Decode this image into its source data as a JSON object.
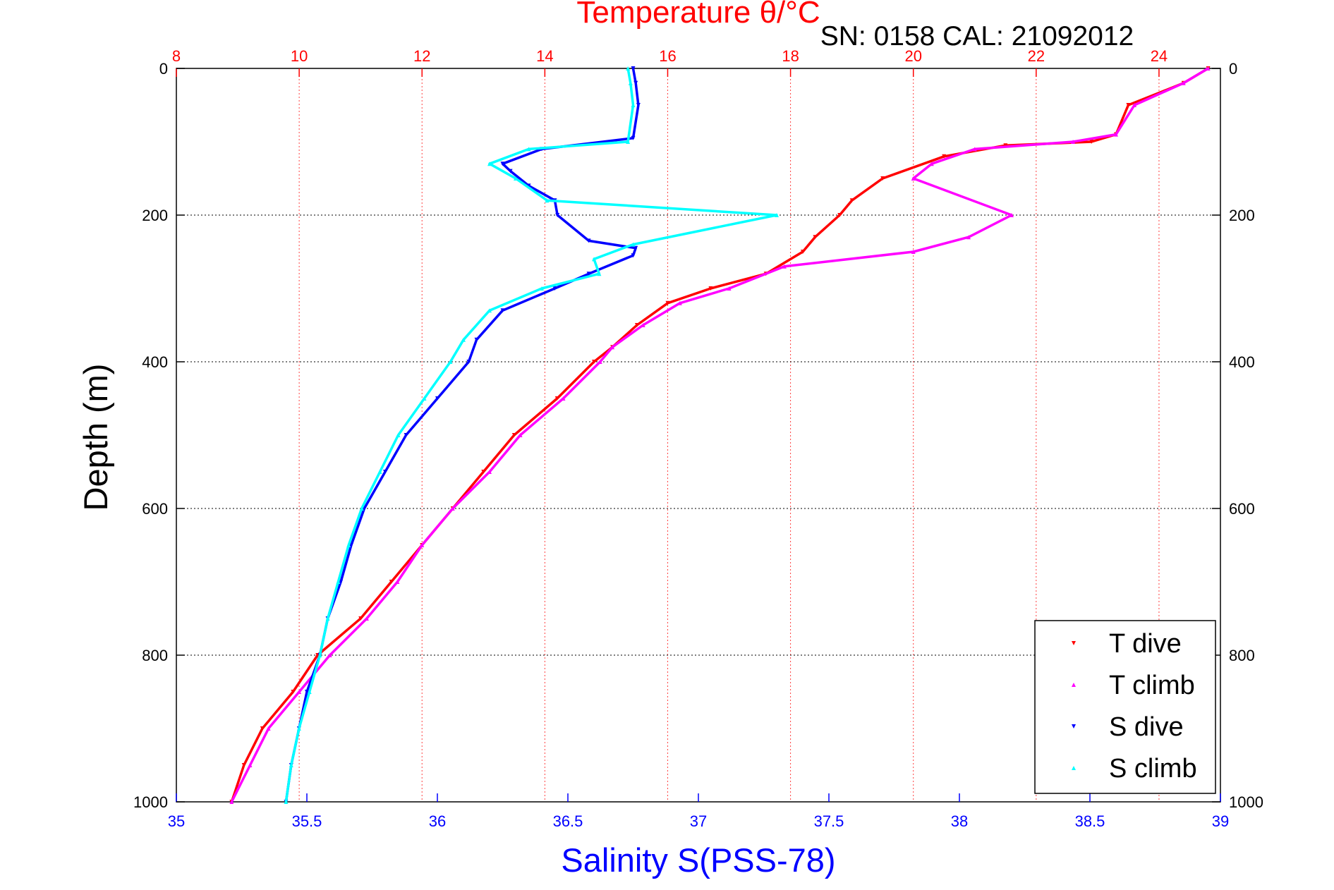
{
  "chart_data": {
    "type": "scatter",
    "title": "Temperature θ/°C",
    "subtitle": "SN: 0158  CAL: 21092012",
    "xlabel": "Salinity S(PSS-78)",
    "ylabel": "Depth (m)",
    "x_bottom": {
      "label": "Salinity S(PSS-78)",
      "range": [
        35,
        39
      ],
      "ticks": [
        "35",
        "35.5",
        "36",
        "36.5",
        "37",
        "37.5",
        "38",
        "38.5",
        "39"
      ],
      "color": "#0000ff"
    },
    "x_top": {
      "label": "Temperature θ/°C",
      "range": [
        8,
        25
      ],
      "ticks": [
        "8",
        "10",
        "12",
        "14",
        "16",
        "18",
        "20",
        "22",
        "24"
      ],
      "color": "#ff0000"
    },
    "y": {
      "label": "Depth (m)",
      "range": [
        0,
        1000
      ],
      "reversed": true,
      "ticks": [
        "0",
        "200",
        "400",
        "600",
        "800",
        "1000"
      ]
    },
    "grid": true,
    "legend": {
      "position": "bottom-right",
      "entries": [
        "T dive",
        "T climb",
        "S dive",
        "S climb"
      ]
    },
    "series": [
      {
        "name": "T dive",
        "axis": "temperature",
        "color": "#ff0000",
        "marker": "triangle-down",
        "depth": [
          0,
          20,
          50,
          90,
          100,
          105,
          120,
          150,
          180,
          200,
          230,
          250,
          280,
          300,
          320,
          350,
          380,
          400,
          450,
          500,
          550,
          600,
          650,
          700,
          750,
          800,
          850,
          900,
          950,
          1000
        ],
        "values": [
          24.8,
          24.4,
          23.5,
          23.3,
          22.9,
          21.5,
          20.5,
          19.5,
          19.0,
          18.8,
          18.4,
          18.2,
          17.6,
          16.7,
          16.0,
          15.5,
          15.1,
          14.8,
          14.2,
          13.5,
          13.0,
          12.5,
          12.0,
          11.5,
          11.0,
          10.3,
          9.9,
          9.4,
          9.1,
          8.9
        ]
      },
      {
        "name": "T climb",
        "axis": "temperature",
        "color": "#ff00ff",
        "marker": "triangle-up",
        "depth": [
          0,
          20,
          50,
          90,
          100,
          110,
          130,
          150,
          200,
          230,
          250,
          270,
          300,
          320,
          350,
          380,
          400,
          450,
          500,
          550,
          600,
          650,
          700,
          750,
          800,
          850,
          900,
          950,
          1000
        ],
        "values": [
          24.8,
          24.4,
          23.6,
          23.3,
          22.6,
          21.0,
          20.3,
          20.0,
          21.6,
          20.9,
          20.0,
          17.9,
          17.0,
          16.2,
          15.6,
          15.1,
          14.9,
          14.3,
          13.6,
          13.1,
          12.5,
          12.0,
          11.6,
          11.1,
          10.5,
          10.0,
          9.5,
          9.2,
          8.9
        ]
      },
      {
        "name": "S dive",
        "axis": "salinity",
        "color": "#0000ff",
        "marker": "triangle-down",
        "depth": [
          0,
          20,
          50,
          95,
          110,
          130,
          140,
          160,
          180,
          200,
          235,
          245,
          255,
          280,
          300,
          330,
          370,
          400,
          450,
          500,
          550,
          600,
          650,
          700,
          750,
          800,
          850,
          900,
          950,
          1000
        ],
        "values": [
          36.75,
          36.76,
          36.77,
          36.75,
          36.4,
          36.25,
          36.28,
          36.35,
          36.45,
          36.46,
          36.58,
          36.76,
          36.75,
          36.58,
          36.45,
          36.25,
          36.15,
          36.12,
          36.0,
          35.88,
          35.8,
          35.72,
          35.67,
          35.63,
          35.58,
          35.55,
          35.5,
          35.47,
          35.44,
          35.42
        ]
      },
      {
        "name": "S climb",
        "axis": "salinity",
        "color": "#00ffff",
        "marker": "triangle-up",
        "depth": [
          0,
          20,
          50,
          100,
          110,
          130,
          150,
          180,
          200,
          240,
          260,
          280,
          300,
          330,
          370,
          400,
          450,
          500,
          550,
          600,
          650,
          700,
          750,
          800,
          850,
          900,
          950,
          1000
        ],
        "values": [
          36.73,
          36.74,
          36.75,
          36.73,
          36.35,
          36.2,
          36.3,
          36.42,
          37.3,
          36.75,
          36.6,
          36.62,
          36.4,
          36.2,
          36.1,
          36.05,
          35.95,
          35.85,
          35.78,
          35.71,
          35.66,
          35.62,
          35.58,
          35.55,
          35.51,
          35.47,
          35.44,
          35.42
        ]
      }
    ]
  }
}
